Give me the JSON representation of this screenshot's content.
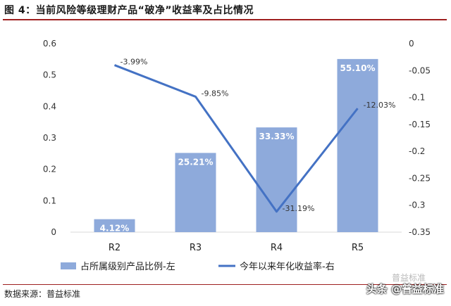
{
  "header": {
    "title": "图 4：当前风险等级理财产品“破净”收益率及占比情况"
  },
  "footer": {
    "source": "数据来源：普益标准",
    "watermark": "头条 @普益标准",
    "watermark_faint": "普益标准"
  },
  "colors": {
    "bar": "#8eaadb",
    "line": "#4472c4",
    "rule": "#9e1f1f"
  },
  "chart_data": {
    "type": "bar+line",
    "categories": [
      "R2",
      "R3",
      "R4",
      "R5"
    ],
    "series": [
      {
        "name": "占所属级别产品比例-左",
        "type": "bar",
        "axis": "left",
        "values": [
          0.0412,
          0.2521,
          0.3333,
          0.551
        ],
        "labels": [
          "4.12%",
          "25.21%",
          "33.33%",
          "55.10%"
        ]
      },
      {
        "name": "今年以来年化收益率-右",
        "type": "line",
        "axis": "right",
        "values": [
          -0.0399,
          -0.0985,
          -0.3119,
          -0.1203
        ],
        "labels": [
          "-3.99%",
          "-9.85%",
          "-31.19%",
          "-12.03%"
        ]
      }
    ],
    "y_left": {
      "min": 0,
      "max": 0.6,
      "ticks": [
        0,
        0.1,
        0.2,
        0.3,
        0.4,
        0.5,
        0.6
      ],
      "tick_labels": [
        "0",
        "0.1",
        "0.2",
        "0.3",
        "0.4",
        "0.5",
        "0.6"
      ]
    },
    "y_right": {
      "min": -0.35,
      "max": 0,
      "ticks": [
        0,
        -0.05,
        -0.1,
        -0.15,
        -0.2,
        -0.25,
        -0.3,
        -0.35
      ],
      "tick_labels": [
        "0",
        "-0.05",
        "-0.1",
        "-0.15",
        "-0.2",
        "-0.25",
        "-0.3",
        "-0.35"
      ]
    },
    "grid": false,
    "legend": "bottom"
  }
}
